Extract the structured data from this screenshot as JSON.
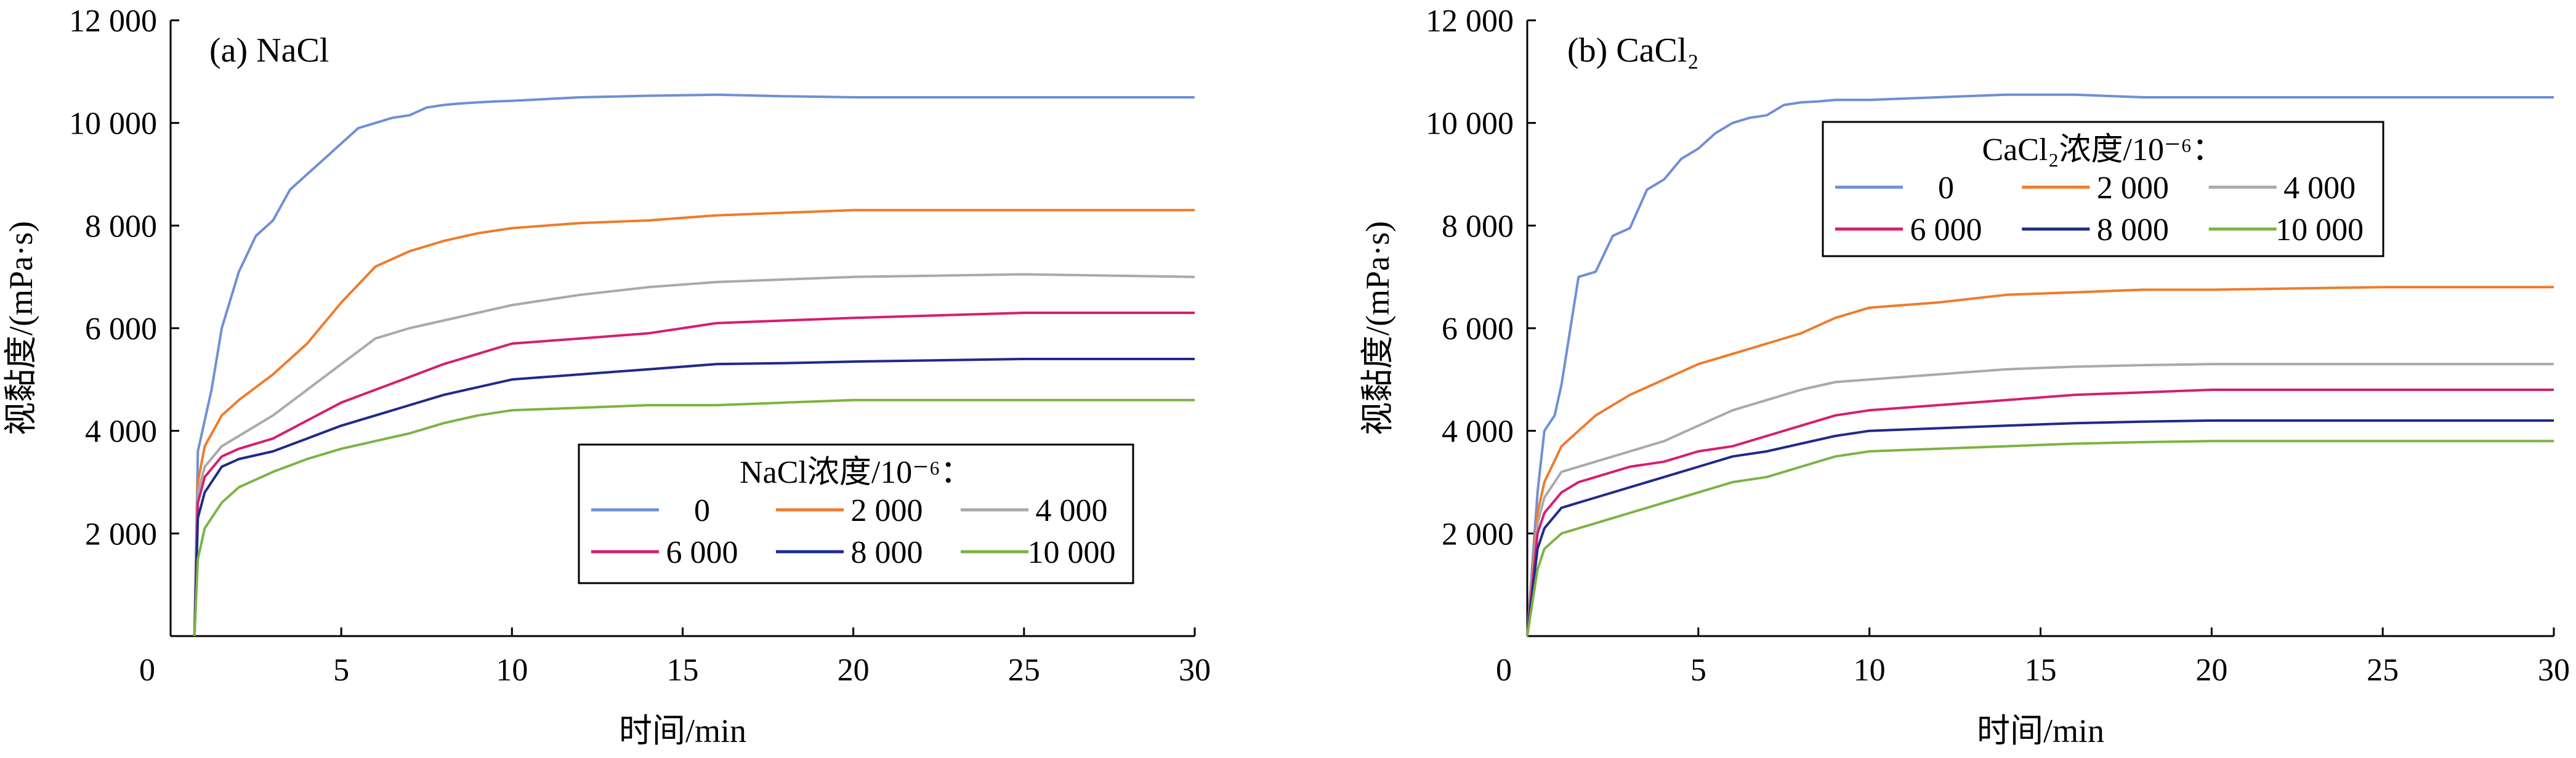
{
  "chart_data": [
    {
      "type": "line",
      "panel_label": "(a) NaCl",
      "xlabel": "时间/min",
      "ylabel": "视黏度/(mPa·s)",
      "xlim": [
        0,
        30
      ],
      "ylim": [
        0,
        12000
      ],
      "xticks": [
        "0",
        "5",
        "10",
        "15",
        "20",
        "25",
        "30"
      ],
      "yticks": [
        "",
        "2 000",
        "4 000",
        "6 000",
        "8 000",
        "10 000",
        "12 000"
      ],
      "grid": false,
      "legend": {
        "placement": "lower-right",
        "title": "NaCl浓度/10⁻⁶：",
        "columns": 3
      },
      "series": [
        {
          "name": "0",
          "color": "#6f8fd6",
          "x": [
            0.7,
            0.8,
            1,
            1.2,
            1.5,
            2,
            2.5,
            3,
            3.5,
            4,
            4.5,
            5,
            5.5,
            6,
            6.5,
            7,
            7.5,
            8,
            8.5,
            9,
            9.5,
            10,
            12,
            14,
            16,
            18,
            20,
            25,
            30
          ],
          "y": [
            0,
            3600,
            4200,
            4800,
            6000,
            7100,
            7800,
            8100,
            8700,
            9000,
            9300,
            9600,
            9900,
            10000,
            10100,
            10150,
            10300,
            10350,
            10380,
            10400,
            10420,
            10430,
            10500,
            10530,
            10550,
            10520,
            10500,
            10500,
            10500
          ]
        },
        {
          "name": "2 000",
          "color": "#ef7b2b",
          "x": [
            0.7,
            0.8,
            1,
            1.5,
            2,
            3,
            4,
            5,
            6,
            7,
            8,
            9,
            10,
            12,
            14,
            16,
            18,
            20,
            25,
            30
          ],
          "y": [
            0,
            3000,
            3700,
            4300,
            4600,
            5100,
            5700,
            6500,
            7200,
            7500,
            7700,
            7850,
            7950,
            8050,
            8100,
            8200,
            8250,
            8300,
            8300,
            8300
          ]
        },
        {
          "name": "4 000",
          "color": "#a9a9a9",
          "x": [
            0.7,
            0.8,
            1,
            1.5,
            2,
            3,
            4,
            5,
            6,
            7,
            8,
            9,
            10,
            12,
            14,
            16,
            18,
            20,
            25,
            30
          ],
          "y": [
            0,
            2800,
            3300,
            3700,
            3900,
            4300,
            4800,
            5300,
            5800,
            6000,
            6150,
            6300,
            6450,
            6650,
            6800,
            6900,
            6950,
            7000,
            7050,
            7000
          ]
        },
        {
          "name": "6 000",
          "color": "#d61e6e",
          "x": [
            0.7,
            0.8,
            1,
            1.5,
            2,
            3,
            4,
            5,
            6,
            7,
            8,
            9,
            10,
            12,
            14,
            16,
            18,
            20,
            25,
            30
          ],
          "y": [
            0,
            2600,
            3100,
            3500,
            3650,
            3850,
            4200,
            4550,
            4800,
            5050,
            5300,
            5500,
            5700,
            5800,
            5900,
            6100,
            6150,
            6200,
            6300,
            6300
          ]
        },
        {
          "name": "8 000",
          "color": "#1f2a8a",
          "x": [
            0.7,
            0.8,
            1,
            1.5,
            2,
            3,
            4,
            5,
            6,
            7,
            8,
            9,
            10,
            12,
            14,
            16,
            18,
            20,
            25,
            30
          ],
          "y": [
            0,
            2300,
            2800,
            3300,
            3450,
            3600,
            3850,
            4100,
            4300,
            4500,
            4700,
            4850,
            5000,
            5100,
            5200,
            5300,
            5320,
            5350,
            5400,
            5400
          ]
        },
        {
          "name": "10 000",
          "color": "#7cb342",
          "x": [
            0.7,
            0.8,
            1,
            1.5,
            2,
            3,
            4,
            5,
            6,
            7,
            8,
            9,
            10,
            12,
            14,
            16,
            18,
            20,
            25,
            30
          ],
          "y": [
            0,
            1500,
            2100,
            2600,
            2900,
            3200,
            3450,
            3650,
            3800,
            3950,
            4150,
            4300,
            4400,
            4450,
            4500,
            4500,
            4550,
            4600,
            4600,
            4600
          ]
        }
      ]
    },
    {
      "type": "line",
      "panel_label": "(b) CaCl₂",
      "xlabel": "时间/min",
      "ylabel": "视黏度/(mPa·s)",
      "xlim": [
        0,
        30
      ],
      "ylim": [
        0,
        12000
      ],
      "xticks": [
        "0",
        "5",
        "10",
        "15",
        "20",
        "25",
        "30"
      ],
      "yticks": [
        "",
        "2 000",
        "4 000",
        "6 000",
        "8 000",
        "10 000",
        "12 000"
      ],
      "grid": false,
      "legend": {
        "placement": "upper-center",
        "title": "CaCl₂浓度/10⁻⁶：",
        "columns": 3
      },
      "series": [
        {
          "name": "0",
          "color": "#6f8fd6",
          "x": [
            0,
            0.3,
            0.5,
            0.8,
            1,
            1.5,
            2,
            2.5,
            3,
            3.5,
            4,
            4.5,
            5,
            5.5,
            6,
            6.5,
            7,
            7.5,
            8,
            8.5,
            9,
            9.5,
            10,
            12,
            14,
            16,
            18,
            20,
            25,
            30
          ],
          "y": [
            0,
            2800,
            4000,
            4300,
            4900,
            7000,
            7100,
            7800,
            7950,
            8700,
            8900,
            9300,
            9500,
            9800,
            10000,
            10100,
            10150,
            10350,
            10400,
            10420,
            10450,
            10450,
            10450,
            10500,
            10550,
            10550,
            10500,
            10500,
            10500,
            10500
          ]
        },
        {
          "name": "2 000",
          "color": "#ef7b2b",
          "x": [
            0,
            0.3,
            0.5,
            1,
            1.5,
            2,
            3,
            4,
            5,
            6,
            7,
            8,
            9,
            10,
            12,
            14,
            16,
            18,
            20,
            25,
            30
          ],
          "y": [
            0,
            2400,
            3000,
            3700,
            4000,
            4300,
            4700,
            5000,
            5300,
            5500,
            5700,
            5900,
            6200,
            6400,
            6500,
            6650,
            6700,
            6750,
            6750,
            6800,
            6800
          ]
        },
        {
          "name": "4 000",
          "color": "#a9a9a9",
          "x": [
            0,
            0.3,
            0.5,
            1,
            1.5,
            2,
            3,
            4,
            5,
            6,
            7,
            8,
            9,
            10,
            12,
            14,
            16,
            18,
            20,
            25,
            30
          ],
          "y": [
            0,
            2200,
            2700,
            3200,
            3300,
            3400,
            3600,
            3800,
            4100,
            4400,
            4600,
            4800,
            4950,
            5000,
            5100,
            5200,
            5250,
            5280,
            5300,
            5300,
            5300
          ]
        },
        {
          "name": "6 000",
          "color": "#d61e6e",
          "x": [
            0,
            0.3,
            0.5,
            1,
            1.5,
            2,
            3,
            4,
            5,
            6,
            7,
            8,
            9,
            10,
            12,
            14,
            16,
            18,
            20,
            25,
            30
          ],
          "y": [
            0,
            2000,
            2400,
            2800,
            3000,
            3100,
            3300,
            3400,
            3600,
            3700,
            3900,
            4100,
            4300,
            4400,
            4500,
            4600,
            4700,
            4750,
            4800,
            4800,
            4800
          ]
        },
        {
          "name": "8 000",
          "color": "#1f2a8a",
          "x": [
            0,
            0.3,
            0.5,
            1,
            1.5,
            2,
            3,
            4,
            5,
            6,
            7,
            8,
            9,
            10,
            12,
            14,
            16,
            18,
            20,
            25,
            30
          ],
          "y": [
            0,
            1700,
            2100,
            2500,
            2600,
            2700,
            2900,
            3100,
            3300,
            3500,
            3600,
            3750,
            3900,
            4000,
            4050,
            4100,
            4150,
            4180,
            4200,
            4200,
            4200
          ]
        },
        {
          "name": "10 000",
          "color": "#7cb342",
          "x": [
            0,
            0.3,
            0.5,
            1,
            1.5,
            2,
            3,
            4,
            5,
            6,
            7,
            8,
            9,
            10,
            12,
            14,
            16,
            18,
            20,
            25,
            30
          ],
          "y": [
            0,
            1300,
            1700,
            2000,
            2100,
            2200,
            2400,
            2600,
            2800,
            3000,
            3100,
            3300,
            3500,
            3600,
            3650,
            3700,
            3750,
            3780,
            3800,
            3800,
            3800
          ]
        }
      ]
    }
  ]
}
